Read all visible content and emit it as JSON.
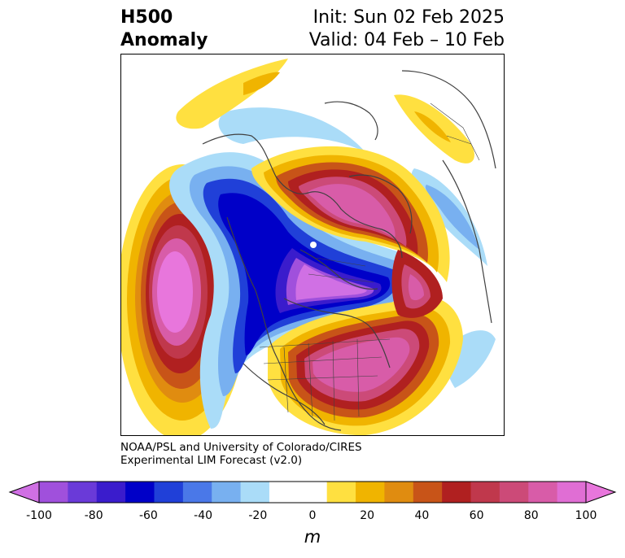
{
  "title": {
    "left_line1": "H500",
    "left_line2": "Anomaly",
    "right_line1": "Init: Sun 02 Feb 2025",
    "right_line2": "Valid: 04 Feb – 10 Feb"
  },
  "credit": {
    "line1": "NOAA/PSL and University of Colorado/CIRES",
    "line2": "Experimental LIM Forecast (v2.0)"
  },
  "colorbar": {
    "unit": "m",
    "ticks": [
      "-100",
      "-80",
      "-60",
      "-40",
      "-20",
      "0",
      "20",
      "40",
      "60",
      "80",
      "100"
    ],
    "min": -100,
    "max": 100,
    "colors": [
      "#d070e4",
      "#a050dc",
      "#6a3ad8",
      "#3a1ccc",
      "#0000c8",
      "#2040d8",
      "#4a78e8",
      "#78b0f0",
      "#aadcf8",
      "#ffffff",
      "#ffffff",
      "#ffe040",
      "#f0b400",
      "#e08c10",
      "#c85418",
      "#b02020",
      "#c0384c",
      "#cc4a78",
      "#d85ca8",
      "#e06ed4",
      "#e876dc"
    ]
  },
  "colors": {
    "coastline": "#404040",
    "land_border": "#404040"
  }
}
